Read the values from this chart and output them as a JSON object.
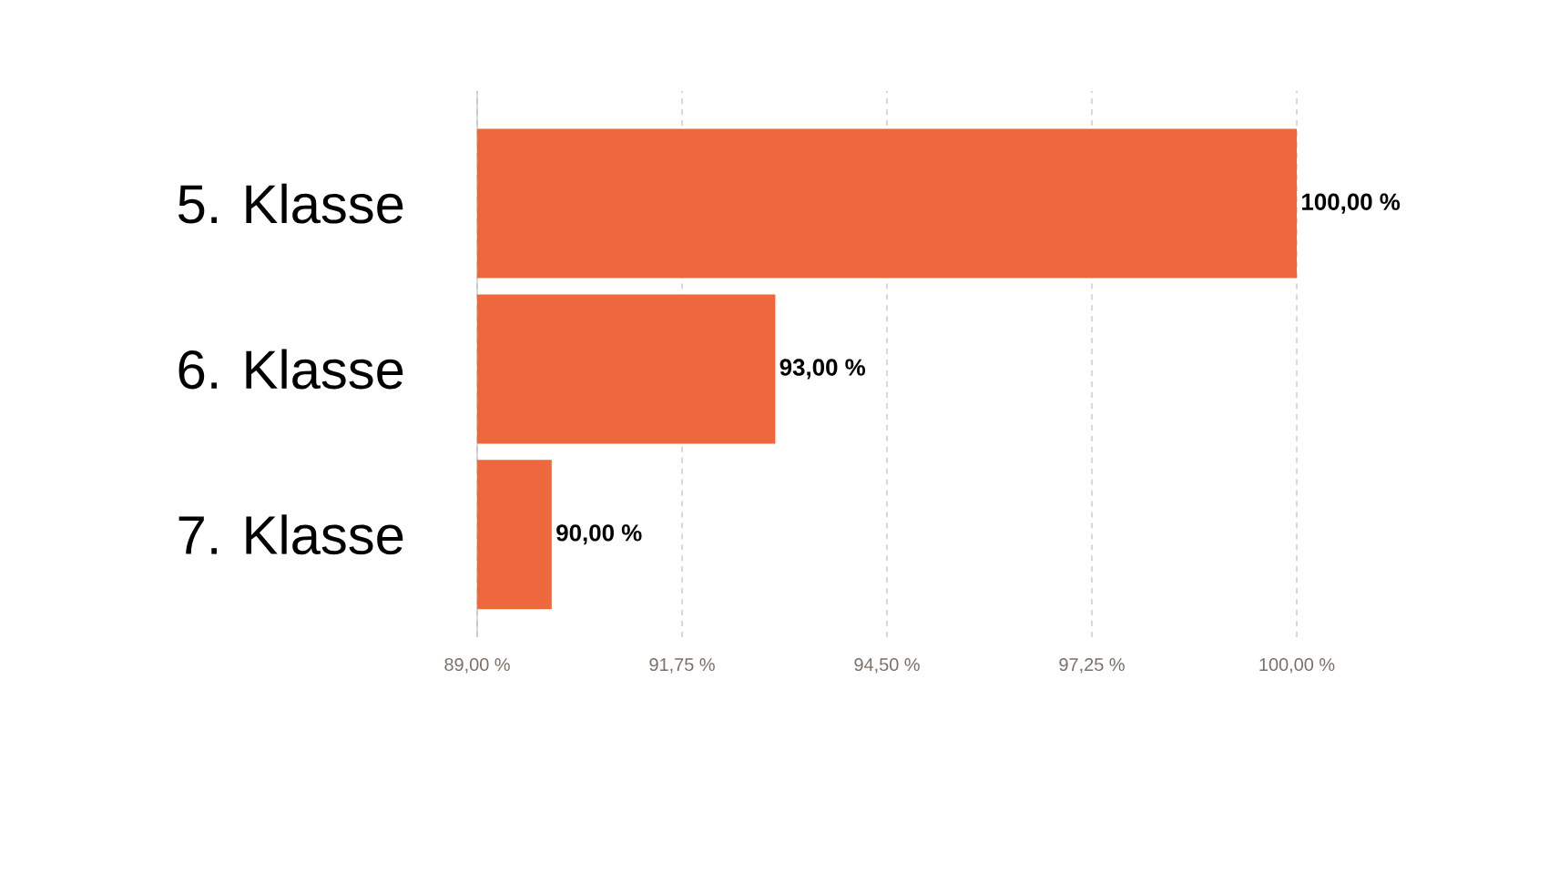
{
  "chart_data": {
    "type": "bar",
    "orientation": "horizontal",
    "categories": [
      "5. Klasse",
      "6. Klasse",
      "7. Klasse"
    ],
    "values": [
      100,
      93,
      90
    ],
    "value_labels": [
      "100,00 %",
      "93,00 %",
      "90,00 %"
    ],
    "color": "#ee683e",
    "xlim": [
      89,
      100
    ],
    "xticks": [
      {
        "value": 89,
        "label": "89,00 %"
      },
      {
        "value": 91.75,
        "label": "91,75 %"
      },
      {
        "value": 94.5,
        "label": "94,50 %"
      },
      {
        "value": 97.25,
        "label": "97,25 %"
      },
      {
        "value": 100,
        "label": "100,00 %"
      }
    ],
    "grid": "x"
  }
}
